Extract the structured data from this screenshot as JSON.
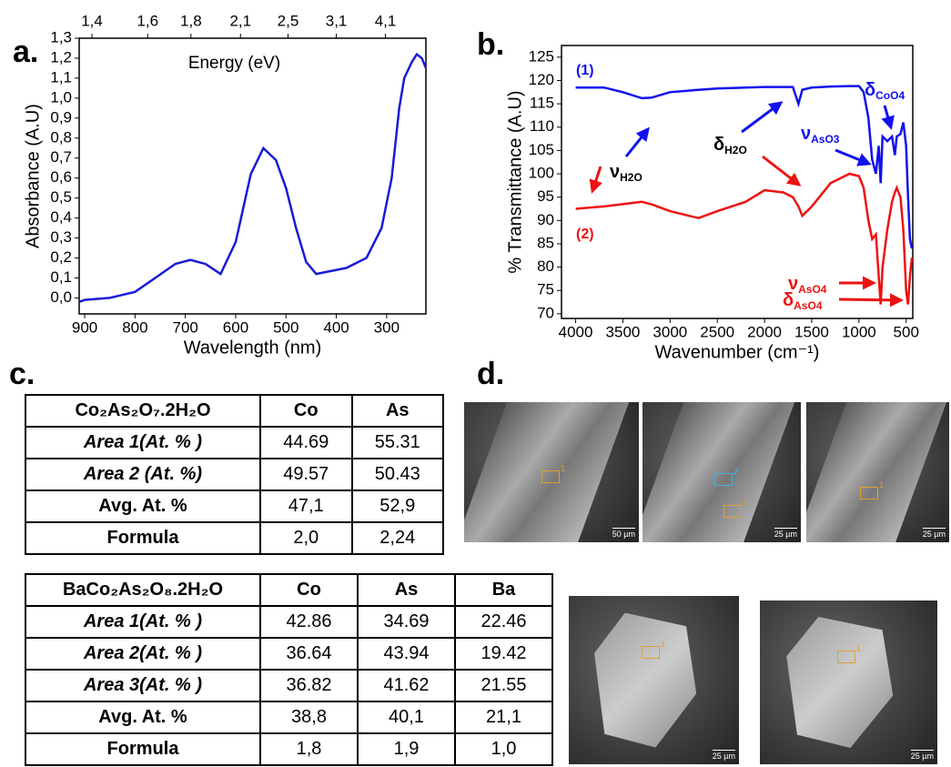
{
  "panel_labels": [
    "a.",
    "b.",
    "c.",
    "d."
  ],
  "chart_data": [
    {
      "type": "line",
      "xlabel": "Wavelength (nm)",
      "ylabel": "Absorbance (A.U)",
      "x2label": "Energy (eV)",
      "color": "#1a1ad6",
      "x": [
        911,
        900,
        850,
        800,
        760,
        720,
        690,
        660,
        630,
        600,
        570,
        545,
        520,
        500,
        480,
        460,
        440,
        420,
        380,
        340,
        310,
        290,
        275,
        265,
        250,
        240,
        230,
        222
      ],
      "values": [
        -0.02,
        -0.01,
        0.0,
        0.03,
        0.1,
        0.17,
        0.19,
        0.17,
        0.12,
        0.28,
        0.62,
        0.75,
        0.69,
        0.55,
        0.35,
        0.18,
        0.12,
        0.13,
        0.15,
        0.2,
        0.35,
        0.6,
        0.95,
        1.1,
        1.18,
        1.22,
        1.2,
        1.15
      ],
      "xlim": [
        911,
        222
      ],
      "xticks": [
        900,
        800,
        700,
        600,
        500,
        400,
        300
      ],
      "x2lim": [
        1.361,
        5.586
      ],
      "x2ticks": [
        {
          "value": 1.4,
          "label": "1,4"
        },
        {
          "value": 1.6,
          "label": "1,6"
        },
        {
          "value": 1.8,
          "label": "1,8"
        },
        {
          "value": 2.1,
          "label": "2,1"
        },
        {
          "value": 2.5,
          "label": "2,5"
        },
        {
          "value": 3.1,
          "label": "3,1"
        },
        {
          "value": 4.1,
          "label": "4,1"
        }
      ],
      "ylim": [
        -0.08,
        1.3
      ],
      "yticks": [
        {
          "value": 0,
          "label": "0,0"
        },
        {
          "value": 0.1,
          "label": "0,1"
        },
        {
          "value": 0.2,
          "label": "0,2"
        },
        {
          "value": 0.3,
          "label": "0,3"
        },
        {
          "value": 0.4,
          "label": "0,4"
        },
        {
          "value": 0.5,
          "label": "0,5"
        },
        {
          "value": 0.6,
          "label": "0,6"
        },
        {
          "value": 0.7,
          "label": "0,7"
        },
        {
          "value": 0.8,
          "label": "0,8"
        },
        {
          "value": 0.9,
          "label": "0,9"
        },
        {
          "value": 1.0,
          "label": "1,0"
        },
        {
          "value": 1.1,
          "label": "1,1"
        },
        {
          "value": 1.2,
          "label": "1,2"
        },
        {
          "value": 1.3,
          "label": "1,3"
        }
      ]
    },
    {
      "type": "line",
      "xlabel": "Wavenumber (cm⁻¹)",
      "ylabel": "% Transmittance (A.U)",
      "x": [
        4000,
        3700,
        3500,
        3300,
        3200,
        3000,
        2700,
        2500,
        2200,
        2000,
        1800,
        1700,
        1640,
        1600,
        1500,
        1300,
        1100,
        1000,
        950,
        900,
        860,
        820,
        790,
        770,
        750,
        700,
        650,
        620,
        600,
        560,
        530,
        500,
        480,
        460,
        440
      ],
      "series": [
        {
          "color": "#1111ee",
          "values": [
            118.5,
            118.5,
            117.5,
            116.2,
            116.3,
            117.5,
            118,
            118.3,
            118.5,
            118.6,
            118.6,
            118.6,
            115,
            118,
            118.5,
            118.7,
            118.8,
            118.8,
            117.5,
            112,
            103,
            100,
            106,
            98,
            108,
            107,
            108,
            104,
            108,
            108.5,
            111,
            106,
            95,
            86,
            84
          ]
        },
        {
          "color": "#ee1111",
          "values": [
            92.5,
            93,
            93.5,
            94,
            93.5,
            92,
            90.5,
            92,
            94,
            96.5,
            96,
            95,
            93,
            91,
            93,
            98,
            100,
            99.5,
            97,
            90,
            86,
            87,
            78,
            72,
            80,
            88,
            94,
            96,
            97,
            95,
            88,
            75,
            72,
            78,
            82
          ]
        }
      ],
      "xlim": [
        4150,
        430
      ],
      "xticks": [
        4000,
        3500,
        3000,
        2500,
        2000,
        1500,
        1000,
        500
      ],
      "ylim": [
        69,
        127.5
      ],
      "yticks": [
        70,
        75,
        80,
        85,
        90,
        95,
        100,
        105,
        110,
        115,
        120,
        125
      ],
      "annotations": [
        {
          "text": "(1)",
          "color": "#1111ee"
        },
        {
          "text": "(2)",
          "color": "#ee1111"
        },
        {
          "text": "ν",
          "sub": "H2O",
          "color": "#000000"
        },
        {
          "text": "δ",
          "sub": "H2O",
          "color": "#000000"
        },
        {
          "text": "ν",
          "sub": "AsO3",
          "color": "#1111ee"
        },
        {
          "text": "δ",
          "sub": "CoO4",
          "color": "#1111ee"
        },
        {
          "text": "ν",
          "sub": "AsO4",
          "color": "#ee1111"
        },
        {
          "text": "δ",
          "sub": "AsO4",
          "color": "#ee1111"
        }
      ]
    }
  ],
  "tables": [
    {
      "header": [
        "Co₂As₂O₇.2H₂O",
        "Co",
        "As"
      ],
      "rows": [
        [
          "Area 1(At. % )",
          "44.69",
          "55.31"
        ],
        [
          "Area 2 (At. %)",
          "49.57",
          "50.43"
        ],
        [
          "Avg. At. %",
          "47,1",
          "52,9"
        ],
        [
          "Formula",
          "2,0",
          "2,24"
        ]
      ]
    },
    {
      "header": [
        "BaCo₂As₂O₈.2H₂O",
        "Co",
        "As",
        "Ba"
      ],
      "rows": [
        [
          "Area 1(At. % )",
          "42.86",
          "34.69",
          "22.46"
        ],
        [
          "Area 2(At. % )",
          "36.64",
          "43.94",
          "19.42"
        ],
        [
          "Area 3(At. % )",
          "36.82",
          "41.62",
          "21.55"
        ],
        [
          "Avg. At. %",
          "38,8",
          "40,1",
          "21,1"
        ],
        [
          "Formula",
          "1,8",
          "1,9",
          "1,0"
        ]
      ]
    }
  ],
  "images": [
    {
      "scale": "50 µm",
      "markers": [
        "1"
      ]
    },
    {
      "scale": "25 µm",
      "markers": [
        "2",
        "1"
      ]
    },
    {
      "scale": "25 µm",
      "markers": [
        "1"
      ]
    },
    {
      "scale": "25 µm",
      "markers": [
        "1"
      ]
    },
    {
      "scale": "25 µm",
      "markers": [
        "1"
      ]
    }
  ]
}
